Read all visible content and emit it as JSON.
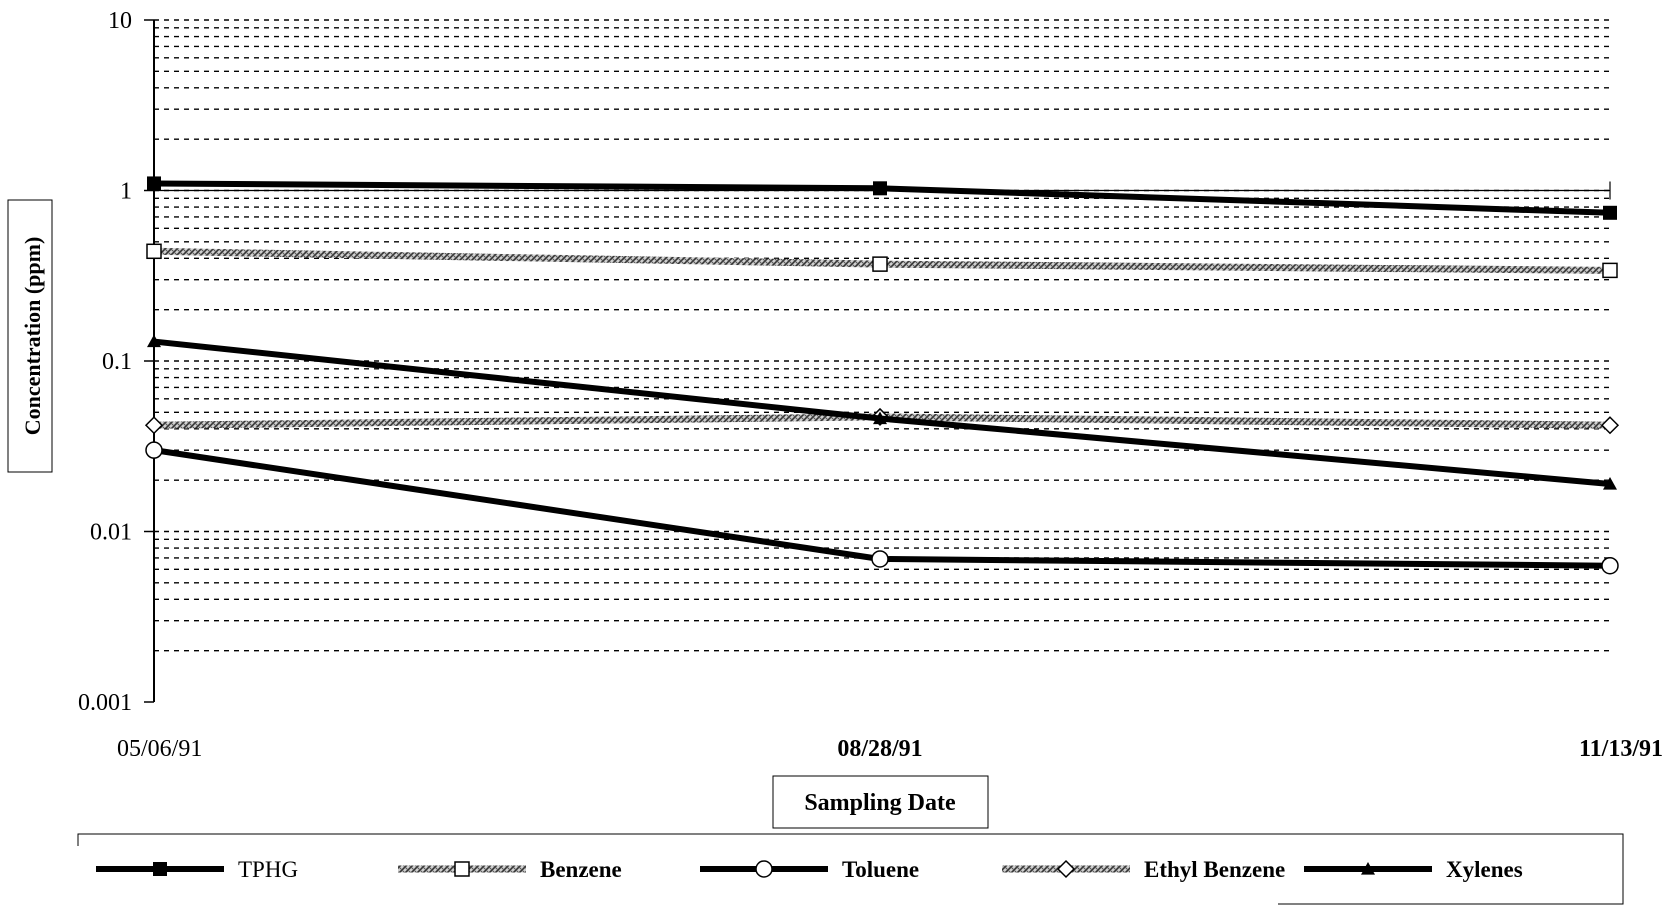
{
  "chart_data": {
    "type": "line",
    "title": "",
    "xlabel": "Sampling Date",
    "ylabel": "Concentration (ppm)",
    "yscale": "log",
    "ylim": [
      0.001,
      10
    ],
    "grid": "dotted horizontal",
    "legend_position": "bottom",
    "y_ticks": [
      "0.001",
      "0.01",
      "0.1",
      "1",
      "10"
    ],
    "x": [
      "05/06/91",
      "08/28/91",
      "11/13/91"
    ],
    "series": [
      {
        "name": "TPHG",
        "values": [
          1.1,
          1.03,
          0.74
        ],
        "marker": "filled-square",
        "style": "solid-thick"
      },
      {
        "name": "Benzene",
        "values": [
          0.44,
          0.37,
          0.34
        ],
        "marker": "open-square",
        "style": "hatched"
      },
      {
        "name": "Toluene",
        "values": [
          0.03,
          0.0069,
          0.0063
        ],
        "marker": "open-circle",
        "style": "solid-thick"
      },
      {
        "name": "Ethyl Benzene",
        "values": [
          0.042,
          0.047,
          0.042
        ],
        "marker": "open-diamond",
        "style": "hatched"
      },
      {
        "name": "Xylenes",
        "values": [
          0.13,
          0.046,
          0.019
        ],
        "marker": "filled-triangle",
        "style": "solid-thick"
      }
    ]
  }
}
